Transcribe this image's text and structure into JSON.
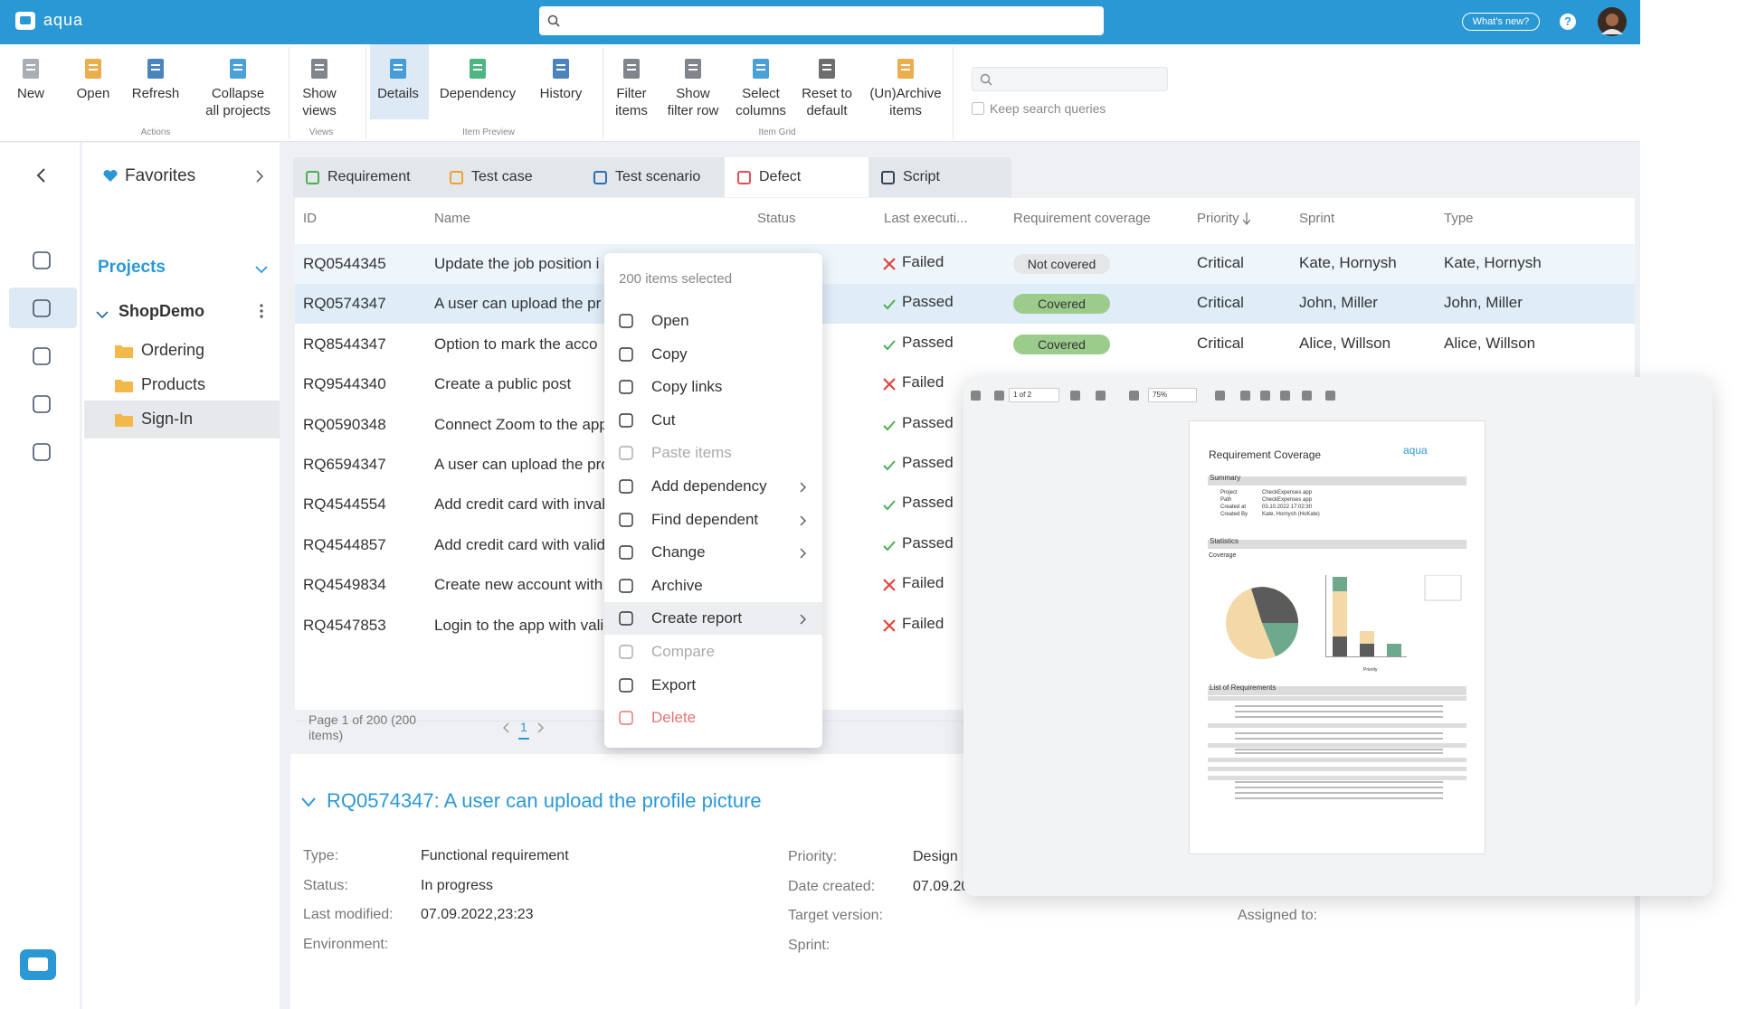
{
  "header": {
    "logo": "aqua",
    "whats_new": "What's new?",
    "help": "?"
  },
  "ribbon": {
    "groups": [
      {
        "label": "Actions",
        "buttons": [
          "New",
          "Open",
          "Refresh",
          "Collapse\nall projects"
        ]
      },
      {
        "label": "Views",
        "buttons": [
          "Show\nviews"
        ]
      },
      {
        "label": "Item Preview",
        "buttons": [
          "Details",
          "Dependency",
          "History"
        ]
      },
      {
        "label": "Item Grid",
        "buttons": [
          "Filter\nitems",
          "Show\nfilter row",
          "Select\ncolumns",
          "Reset to\ndefault",
          "(Un)Archive\nitems"
        ]
      }
    ],
    "keep_search": "Keep search queries"
  },
  "sidebar": {
    "favorites": "Favorites",
    "projects": "Projects",
    "project": "ShopDemo",
    "folders": [
      "Ordering",
      "Products",
      "Sign-In"
    ]
  },
  "tabs": [
    "Requirement",
    "Test case",
    "Test scenario",
    "Defect",
    "Script"
  ],
  "table": {
    "columns": [
      "ID",
      "Name",
      "Status",
      "Last executi...",
      "Requirement coverage",
      "Priority",
      "Sprint",
      "Type"
    ],
    "rows": [
      {
        "id": "RQ0544345",
        "name": "Update the job position i",
        "last_execution": "Failed",
        "coverage": "Not covered",
        "priority": "Critical",
        "sprint": "Kate, Hornysh",
        "type": "Kate, Hornysh"
      },
      {
        "id": "RQ0574347",
        "name": "A user can upload the pr",
        "last_execution": "Passed",
        "coverage": "Covered",
        "priority": "Critical",
        "sprint": "John, Miller",
        "type": "John, Miller"
      },
      {
        "id": "RQ8544347",
        "name": "Option to mark the acco",
        "last_execution": "Passed",
        "coverage": "Covered",
        "priority": "Critical",
        "sprint": "Alice, Willson",
        "type": "Alice, Willson"
      },
      {
        "id": "RQ9544340",
        "name": "Create a public post",
        "last_execution": "Failed"
      },
      {
        "id": "RQ0590348",
        "name": "Connect Zoom to the app",
        "last_execution": "Passed"
      },
      {
        "id": "RQ6594347",
        "name": "A user can upload the pro",
        "last_execution": "Passed"
      },
      {
        "id": "RQ4544554",
        "name": "Add credit card with invali",
        "last_execution": "Passed"
      },
      {
        "id": "RQ4544857",
        "name": "Add credit card with valid",
        "last_execution": "Passed"
      },
      {
        "id": "RQ4549834",
        "name": "Create new account with",
        "last_execution": "Failed"
      },
      {
        "id": "RQ4547853",
        "name": "Login to the app with valid",
        "last_execution": "Failed"
      }
    ]
  },
  "pagination": {
    "info": "Page 1 of 200 (200 items)",
    "page": "1"
  },
  "context_menu": {
    "header": "200 items selected",
    "items": [
      {
        "label": "Open"
      },
      {
        "label": "Copy"
      },
      {
        "label": "Copy links"
      },
      {
        "label": "Cut"
      },
      {
        "label": "Paste items",
        "state": "disabled"
      },
      {
        "label": "Add dependency",
        "submenu": true
      },
      {
        "label": "Find  dependent",
        "submenu": true
      },
      {
        "label": "Change",
        "submenu": true
      },
      {
        "label": "Archive"
      },
      {
        "label": "Create report",
        "submenu": true,
        "state": "highlighted"
      },
      {
        "label": "Compare",
        "state": "disabled"
      },
      {
        "label": "Export"
      },
      {
        "label": "Delete",
        "state": "danger"
      }
    ]
  },
  "details": {
    "title": "RQ0574347: A user can upload the profile picture",
    "left": [
      {
        "label": "Type:",
        "value": "Functional requirement"
      },
      {
        "label": "Status:",
        "value": "In progress"
      },
      {
        "label": "Last modified:",
        "value": "07.09.2022,23:23"
      },
      {
        "label": "Environment:"
      }
    ],
    "right": [
      {
        "label": "Priority:",
        "value": "Design"
      },
      {
        "label": "Date created:",
        "value": "07.09.20"
      },
      {
        "label": "Target version:"
      },
      {
        "label": "Sprint:"
      }
    ],
    "assigned": "Assigned to:"
  },
  "report": {
    "page": "1 of 2",
    "zoom": "75%",
    "title": "Requirement Coverage",
    "logo": "aqua",
    "summary": "Summary",
    "summary_rows": [
      {
        "label": "Project",
        "value": "CheckExpenses app"
      },
      {
        "label": "Path",
        "value": "CheckExpenses app"
      },
      {
        "label": "Created at",
        "value": "03.10.2022 17:02:30"
      },
      {
        "label": "Created By",
        "value": "Kate, Hornysh (HoKate)"
      }
    ],
    "statistics": "Statistics",
    "coverage": "Coverage",
    "priority": "Priority",
    "list": "List of Requirements"
  }
}
